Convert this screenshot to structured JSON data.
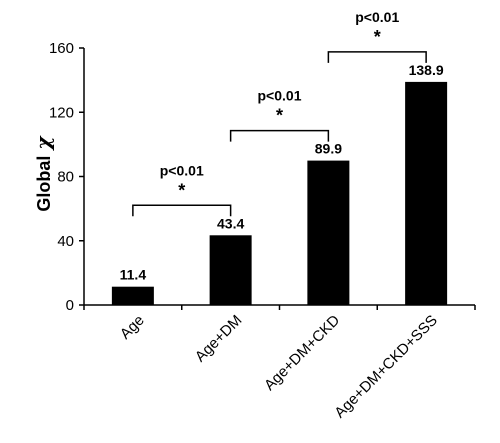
{
  "chart_data": {
    "type": "bar",
    "categories": [
      "Age",
      "Age+DM",
      "Age+DM+CKD",
      "Age+DM+CKD+SSS"
    ],
    "values": [
      11.4,
      43.4,
      89.9,
      138.9
    ],
    "data_labels": [
      "11.4",
      "43.4",
      "89.9",
      "138.9"
    ],
    "ylabel": "Global",
    "ylabel_symbol": "χ",
    "ylim": [
      0,
      160
    ],
    "yticks": [
      0,
      40,
      80,
      120,
      160
    ],
    "bar_color": "#000000",
    "grid": false,
    "legend": "none",
    "comparisons": [
      {
        "from": 0,
        "to": 1,
        "p_text": "p<0.01",
        "marker": "*"
      },
      {
        "from": 1,
        "to": 2,
        "p_text": "p<0.01",
        "marker": "*"
      },
      {
        "from": 2,
        "to": 3,
        "p_text": "p<0.01",
        "marker": "*"
      }
    ]
  }
}
